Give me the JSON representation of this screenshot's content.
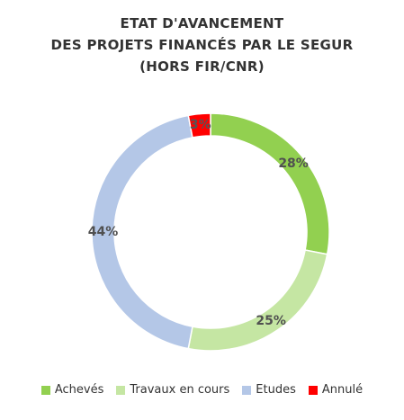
{
  "title_lines": [
    "ETAT D'AVANCEMENT",
    "DES PROJETS FINANCÉS PAR LE SEGUR",
    "(HORS FIR/CNR)"
  ],
  "chart_data": {
    "type": "pie",
    "variant": "donut",
    "title": "ETAT D'AVANCEMENT DES PROJETS FINANCÉS PAR LE SEGUR (HORS FIR/CNR)",
    "categories": [
      "Achevés",
      "Travaux en cours",
      "Etudes",
      "Annulé"
    ],
    "values": [
      28,
      25,
      44,
      3
    ],
    "data_labels": [
      "28%",
      "25%",
      "44%",
      "3%"
    ],
    "colors": [
      "#92d050",
      "#c5e6a3",
      "#b4c7e7",
      "#ff0000"
    ],
    "legend_position": "bottom",
    "start_angle": "top, clockwise"
  }
}
